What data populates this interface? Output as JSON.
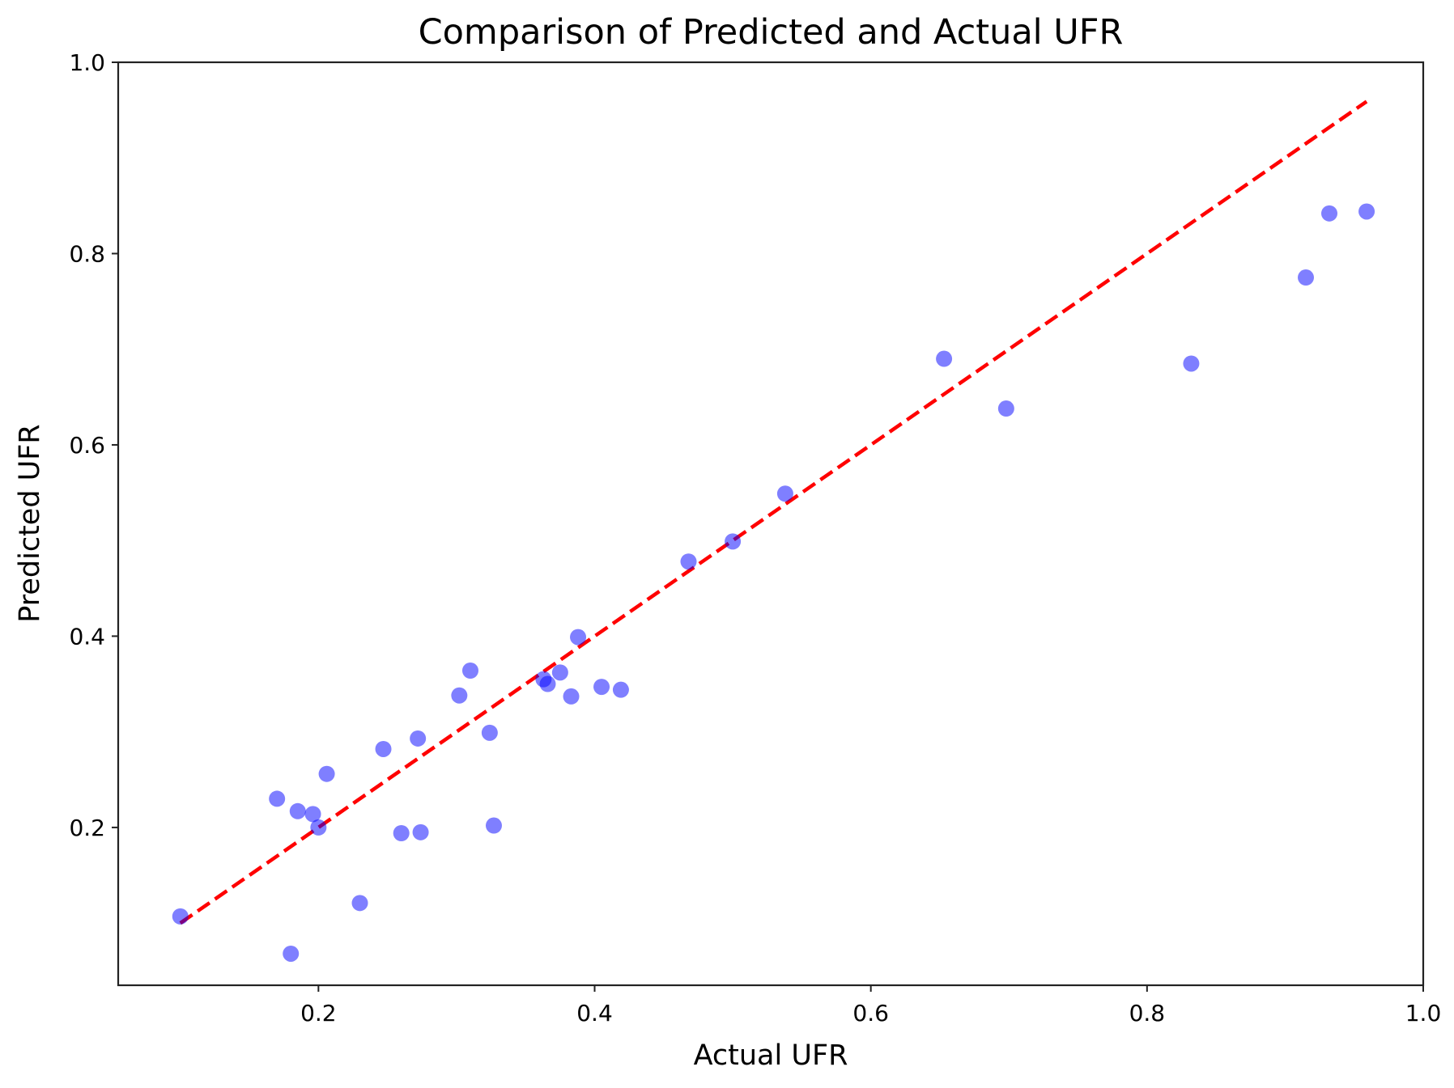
{
  "chart_data": {
    "type": "scatter",
    "title": "Comparison of Predicted and Actual UFR",
    "xlabel": "Actual UFR",
    "ylabel": "Predicted UFR",
    "xlim": [
      0.055,
      1.0
    ],
    "ylim": [
      0.035,
      1.0
    ],
    "xticks": [
      0.2,
      0.4,
      0.6,
      0.8,
      1.0
    ],
    "yticks": [
      0.2,
      0.4,
      0.6,
      0.8,
      1.0
    ],
    "xtick_labels": [
      "0.2",
      "0.4",
      "0.6",
      "0.8",
      "1.0"
    ],
    "ytick_labels": [
      "0.2",
      "0.4",
      "0.6",
      "0.8",
      "1.0"
    ],
    "grid": false,
    "points": [
      {
        "x": 0.1,
        "y": 0.107
      },
      {
        "x": 0.17,
        "y": 0.23
      },
      {
        "x": 0.18,
        "y": 0.068
      },
      {
        "x": 0.185,
        "y": 0.217
      },
      {
        "x": 0.196,
        "y": 0.214
      },
      {
        "x": 0.2,
        "y": 0.2
      },
      {
        "x": 0.206,
        "y": 0.256
      },
      {
        "x": 0.23,
        "y": 0.121
      },
      {
        "x": 0.247,
        "y": 0.282
      },
      {
        "x": 0.26,
        "y": 0.194
      },
      {
        "x": 0.272,
        "y": 0.293
      },
      {
        "x": 0.274,
        "y": 0.195
      },
      {
        "x": 0.302,
        "y": 0.338
      },
      {
        "x": 0.31,
        "y": 0.364
      },
      {
        "x": 0.324,
        "y": 0.299
      },
      {
        "x": 0.327,
        "y": 0.202
      },
      {
        "x": 0.363,
        "y": 0.355
      },
      {
        "x": 0.366,
        "y": 0.35
      },
      {
        "x": 0.375,
        "y": 0.362
      },
      {
        "x": 0.383,
        "y": 0.337
      },
      {
        "x": 0.388,
        "y": 0.399
      },
      {
        "x": 0.405,
        "y": 0.347
      },
      {
        "x": 0.419,
        "y": 0.344
      },
      {
        "x": 0.468,
        "y": 0.478
      },
      {
        "x": 0.5,
        "y": 0.499
      },
      {
        "x": 0.538,
        "y": 0.549
      },
      {
        "x": 0.653,
        "y": 0.69
      },
      {
        "x": 0.698,
        "y": 0.638
      },
      {
        "x": 0.832,
        "y": 0.685
      },
      {
        "x": 0.915,
        "y": 0.775
      },
      {
        "x": 0.932,
        "y": 0.842
      },
      {
        "x": 0.959,
        "y": 0.844
      }
    ],
    "reference_line": {
      "x": [
        0.1,
        0.959
      ],
      "y": [
        0.1,
        0.959
      ]
    },
    "colors": {
      "points": "#0000ff",
      "points_opacity": 0.5,
      "reference_line": "#ff0000"
    }
  }
}
